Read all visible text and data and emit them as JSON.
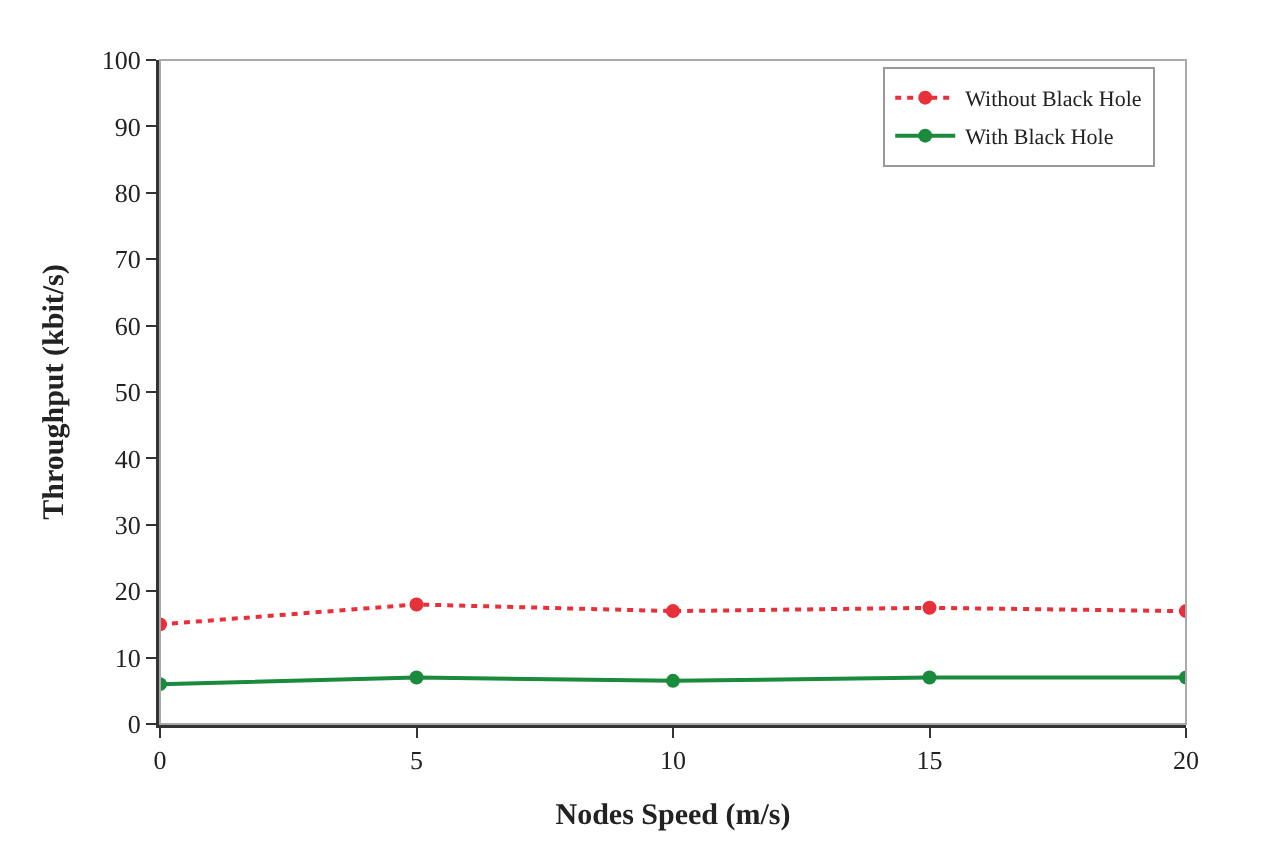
{
  "chart_data": {
    "type": "line",
    "xlabel": "Nodes Speed (m/s)",
    "ylabel": "Throughput (kbit/s)",
    "x": [
      0,
      5,
      10,
      15,
      20
    ],
    "series": [
      {
        "name": "Without Black Hole",
        "color": "#e8303a",
        "values": [
          15,
          18,
          17,
          17.5,
          17
        ],
        "line_style": "dotted"
      },
      {
        "name": "With Black Hole",
        "color": "#1a8a3c",
        "values": [
          6,
          7,
          6.5,
          7,
          7
        ],
        "line_style": "solid"
      }
    ],
    "xlim": [
      0,
      20
    ],
    "xticks": [
      0,
      5,
      10,
      15,
      20
    ],
    "ylim": [
      0,
      100
    ],
    "yticks": [
      0,
      10,
      20,
      30,
      40,
      50,
      60,
      70,
      80,
      90,
      100
    ],
    "legend": "top right",
    "marker": "circle"
  }
}
